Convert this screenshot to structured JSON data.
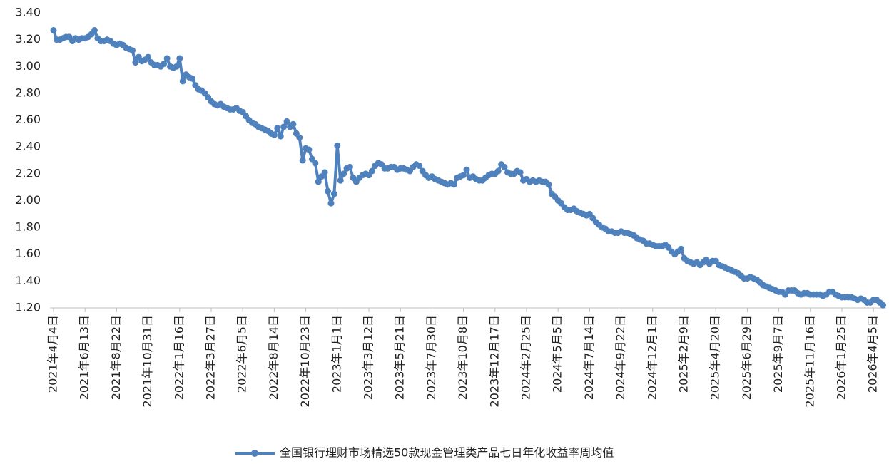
{
  "chart_data": {
    "type": "line",
    "categories": [
      "2021年4月4日",
      null,
      null,
      null,
      null,
      null,
      null,
      null,
      null,
      null,
      "2021年6月13日",
      null,
      null,
      null,
      null,
      null,
      null,
      null,
      null,
      null,
      "2021年8月22日",
      null,
      null,
      null,
      null,
      null,
      null,
      null,
      null,
      null,
      "2021年10月31日",
      null,
      null,
      null,
      null,
      null,
      null,
      null,
      null,
      null,
      "2022年1月16日",
      null,
      null,
      null,
      null,
      null,
      null,
      null,
      null,
      null,
      "2022年3月27日",
      null,
      null,
      null,
      null,
      null,
      null,
      null,
      null,
      null,
      "2022年6月5日",
      null,
      null,
      null,
      null,
      null,
      null,
      null,
      null,
      null,
      "2022年8月14日",
      null,
      null,
      null,
      null,
      null,
      null,
      null,
      null,
      null,
      "2022年10月23日",
      null,
      null,
      null,
      null,
      null,
      null,
      null,
      null,
      null,
      "2023年1月1日",
      null,
      null,
      null,
      null,
      null,
      null,
      null,
      null,
      null,
      "2023年3月12日",
      null,
      null,
      null,
      null,
      null,
      null,
      null,
      null,
      null,
      "2023年5月21日",
      null,
      null,
      null,
      null,
      null,
      null,
      null,
      null,
      null,
      "2023年7月30日",
      null,
      null,
      null,
      null,
      null,
      null,
      null,
      null,
      null,
      "2023年10月8日",
      null,
      null,
      null,
      null,
      null,
      null,
      null,
      null,
      null,
      "2023年12月17日",
      null,
      null,
      null,
      null,
      null,
      null,
      null,
      null,
      null,
      "2024年2月25日",
      null,
      null,
      null,
      null,
      null,
      null,
      null,
      null,
      null,
      "2024年5月5日",
      null,
      null,
      null,
      null,
      null,
      null,
      null,
      null,
      null,
      "2024年7月14日",
      null,
      null,
      null,
      null,
      null,
      null,
      null,
      null,
      null,
      "2024年9月22日",
      null,
      null,
      null,
      null,
      null,
      null,
      null,
      null,
      null,
      "2024年12月1日",
      null,
      null,
      null,
      null,
      null,
      null,
      null,
      null,
      null,
      "2025年2月9日",
      null,
      null,
      null,
      null,
      null,
      null,
      null,
      null,
      null,
      "2025年4月20日",
      null,
      null,
      null,
      null,
      null,
      null,
      null,
      null,
      null,
      "2025年6月29日",
      null,
      null,
      null,
      null,
      null,
      null,
      null,
      null,
      null,
      "2025年9月7日",
      null,
      null,
      null,
      null,
      null,
      null,
      null,
      null,
      null,
      "2025年11月16日",
      null,
      null,
      null,
      null,
      null,
      null,
      null,
      null,
      null,
      "2026年1月25日",
      null,
      null,
      null,
      null,
      null,
      null,
      null,
      null,
      null,
      "2026年4月5日",
      null,
      null,
      null
    ],
    "series": [
      {
        "name": "全国银行理财市场精选50款现金管理类产品七日年化收益率周均值",
        "color": "#4f81bd",
        "values": [
          3.27,
          3.2,
          3.2,
          3.21,
          3.22,
          3.22,
          3.19,
          3.21,
          3.2,
          3.21,
          3.21,
          3.22,
          3.24,
          3.27,
          3.21,
          3.19,
          3.19,
          3.2,
          3.19,
          3.17,
          3.16,
          3.17,
          3.16,
          3.14,
          3.13,
          3.12,
          3.03,
          3.07,
          3.04,
          3.05,
          3.07,
          3.03,
          3.01,
          3.01,
          3.0,
          3.02,
          3.06,
          3.0,
          2.99,
          3.0,
          3.06,
          2.89,
          2.94,
          2.92,
          2.91,
          2.86,
          2.83,
          2.82,
          2.8,
          2.77,
          2.74,
          2.72,
          2.71,
          2.72,
          2.7,
          2.69,
          2.68,
          2.68,
          2.69,
          2.67,
          2.66,
          2.63,
          2.6,
          2.58,
          2.57,
          2.55,
          2.54,
          2.53,
          2.52,
          2.5,
          2.49,
          2.54,
          2.48,
          2.55,
          2.59,
          2.55,
          2.57,
          2.5,
          2.47,
          2.3,
          2.39,
          2.38,
          2.31,
          2.28,
          2.14,
          2.18,
          2.21,
          2.07,
          1.98,
          2.05,
          2.41,
          2.15,
          2.2,
          2.24,
          2.25,
          2.17,
          2.14,
          2.17,
          2.19,
          2.2,
          2.19,
          2.22,
          2.26,
          2.28,
          2.27,
          2.24,
          2.24,
          2.25,
          2.25,
          2.23,
          2.24,
          2.24,
          2.23,
          2.22,
          2.25,
          2.27,
          2.26,
          2.22,
          2.19,
          2.17,
          2.18,
          2.16,
          2.15,
          2.14,
          2.13,
          2.12,
          2.13,
          2.12,
          2.17,
          2.18,
          2.19,
          2.23,
          2.17,
          2.18,
          2.16,
          2.15,
          2.15,
          2.17,
          2.19,
          2.2,
          2.2,
          2.22,
          2.27,
          2.25,
          2.21,
          2.2,
          2.2,
          2.22,
          2.21,
          2.15,
          2.16,
          2.14,
          2.15,
          2.14,
          2.15,
          2.14,
          2.14,
          2.12,
          2.05,
          2.03,
          2.0,
          1.98,
          1.95,
          1.93,
          1.93,
          1.94,
          1.92,
          1.91,
          1.9,
          1.89,
          1.9,
          1.87,
          1.84,
          1.82,
          1.8,
          1.79,
          1.77,
          1.77,
          1.76,
          1.76,
          1.77,
          1.76,
          1.76,
          1.75,
          1.74,
          1.72,
          1.71,
          1.7,
          1.68,
          1.68,
          1.67,
          1.66,
          1.66,
          1.66,
          1.67,
          1.65,
          1.62,
          1.6,
          1.62,
          1.64,
          1.57,
          1.55,
          1.54,
          1.53,
          1.54,
          1.52,
          1.54,
          1.56,
          1.53,
          1.55,
          1.55,
          1.52,
          1.51,
          1.5,
          1.49,
          1.48,
          1.47,
          1.46,
          1.44,
          1.42,
          1.42,
          1.43,
          1.42,
          1.41,
          1.39,
          1.37,
          1.36,
          1.35,
          1.34,
          1.33,
          1.32,
          1.32,
          1.3,
          1.33,
          1.33,
          1.33,
          1.31,
          1.3,
          1.31,
          1.31,
          1.3,
          1.3,
          1.3,
          1.3,
          1.29,
          1.3,
          1.32,
          1.32,
          1.3,
          1.29,
          1.28,
          1.28,
          1.28,
          1.28,
          1.27,
          1.26,
          1.27,
          1.26,
          1.24,
          1.24,
          1.26,
          1.26,
          1.24,
          1.22
        ]
      }
    ],
    "ylim": [
      1.2,
      3.4
    ],
    "yticks": [
      {
        "value": 1.2,
        "label": "1.20"
      },
      {
        "value": 1.4,
        "label": "1.40"
      },
      {
        "value": 1.6,
        "label": "1.60"
      },
      {
        "value": 1.8,
        "label": "1.80"
      },
      {
        "value": 2.0,
        "label": "2.00"
      },
      {
        "value": 2.2,
        "label": "2.20"
      },
      {
        "value": 2.4,
        "label": "2.40"
      },
      {
        "value": 2.6,
        "label": "2.60"
      },
      {
        "value": 2.8,
        "label": "2.80"
      },
      {
        "value": 3.0,
        "label": "3.00"
      },
      {
        "value": 3.2,
        "label": "3.20"
      },
      {
        "value": 3.4,
        "label": "3.40"
      }
    ],
    "grid": false,
    "legend": "bottom"
  }
}
